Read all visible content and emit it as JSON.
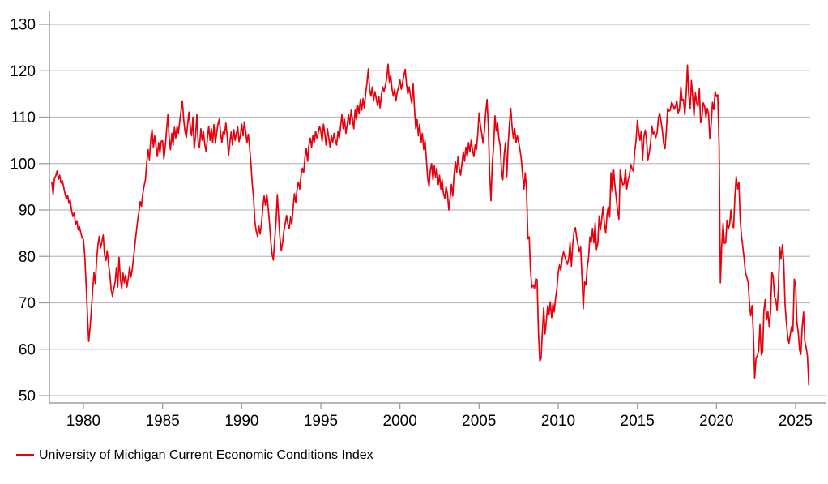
{
  "chart_data": {
    "type": "line",
    "title": "",
    "legend_position": "bottom-left",
    "grid": "horizontal",
    "x_ticks": [
      1980,
      1985,
      1990,
      1995,
      2000,
      2005,
      2010,
      2015,
      2020,
      2025
    ],
    "y_ticks": [
      50,
      60,
      70,
      80,
      90,
      100,
      110,
      120,
      130
    ],
    "x_range": [
      1977.92,
      2026.02
    ],
    "y_range": [
      48.4,
      132.8
    ],
    "colors": {
      "series": "#e8000d",
      "grid": "#bdbdbd",
      "axis": "#9e9e9e",
      "text": "#000000",
      "background": "#ffffff"
    },
    "series": [
      {
        "name": "University of Michigan Current Economic Conditions Index",
        "color": "#e8000d",
        "frequency": "monthly",
        "start_year": 1978,
        "start_month": 1,
        "end_year": 2025,
        "end_month": 11,
        "values": [
          96.0,
          93.4,
          96.9,
          97.3,
          98.4,
          96.6,
          97.5,
          95.8,
          96.3,
          94.9,
          93.6,
          92.4,
          93.2,
          91.4,
          92.1,
          89.8,
          88.6,
          89.4,
          86.9,
          87.7,
          85.7,
          86.4,
          85.1,
          84.0,
          83.6,
          80.2,
          74.0,
          67.5,
          61.7,
          64.5,
          68.5,
          72.8,
          76.5,
          74.2,
          79.3,
          82.5,
          84.3,
          81.8,
          83.2,
          84.6,
          80.4,
          79.1,
          81.2,
          78.4,
          76.1,
          72.9,
          71.4,
          73.0,
          74.5,
          77.6,
          73.4,
          79.8,
          75.2,
          73.1,
          76.4,
          74.3,
          76.0,
          73.4,
          75.3,
          77.8,
          75.5,
          77.2,
          79.8,
          82.5,
          85.0,
          87.5,
          89.5,
          91.8,
          90.8,
          93.5,
          95.2,
          96.5,
          100.2,
          103.0,
          100.8,
          105.2,
          107.3,
          103.5,
          106.0,
          103.8,
          101.5,
          104.5,
          102.3,
          104.8,
          104.9,
          101.0,
          103.5,
          107.0,
          110.5,
          105.5,
          103.0,
          106.5,
          104.0,
          107.8,
          105.5,
          108.0,
          106.5,
          109.0,
          111.5,
          113.5,
          109.5,
          107.0,
          105.6,
          108.5,
          111.1,
          108.0,
          106.0,
          110.0,
          103.2,
          106.0,
          110.5,
          104.5,
          103.5,
          107.5,
          105.0,
          107.0,
          104.0,
          102.6,
          105.5,
          108.0,
          105.0,
          107.5,
          104.5,
          108.4,
          104.4,
          106.5,
          108.5,
          109.6,
          106.5,
          104.5,
          107.0,
          106.4,
          108.7,
          106.0,
          101.8,
          104.5,
          106.8,
          104.0,
          107.3,
          105.0,
          106.5,
          107.9,
          104.7,
          106.0,
          108.5,
          106.0,
          109.0,
          107.0,
          104.5,
          106.3,
          103.5,
          100.0,
          95.5,
          92.5,
          87.5,
          85.5,
          84.3,
          86.5,
          84.8,
          87.0,
          90.5,
          93.0,
          91.0,
          93.4,
          90.7,
          87.5,
          83.5,
          80.5,
          79.2,
          83.5,
          87.5,
          93.3,
          88.5,
          84.0,
          81.2,
          83.0,
          85.5,
          87.0,
          88.8,
          87.0,
          86.0,
          88.5,
          87.0,
          90.5,
          93.5,
          91.5,
          94.5,
          96.0,
          94.5,
          97.5,
          99.0,
          98.0,
          101.5,
          103.2,
          100.5,
          104.0,
          105.5,
          103.5,
          106.0,
          104.5,
          107.0,
          105.5,
          106.5,
          108.0,
          107.0,
          104.8,
          108.5,
          106.5,
          104.0,
          107.5,
          105.5,
          103.5,
          106.0,
          104.5,
          106.5,
          105.0,
          104.0,
          107.0,
          105.5,
          108.0,
          110.5,
          107.5,
          109.5,
          106.5,
          108.5,
          110.5,
          108.5,
          111.5,
          109.5,
          107.5,
          111.5,
          109.5,
          112.5,
          110.8,
          113.8,
          111.5,
          114.0,
          112.0,
          115.0,
          117.5,
          120.4,
          116.0,
          114.5,
          116.5,
          113.5,
          115.5,
          114.0,
          112.5,
          114.5,
          112.0,
          115.0,
          116.5,
          115.5,
          117.0,
          118.5,
          121.4,
          117.5,
          119.0,
          116.0,
          114.5,
          116.0,
          113.5,
          115.5,
          116.5,
          118.0,
          116.0,
          117.5,
          119.0,
          120.3,
          117.0,
          115.0,
          116.5,
          114.5,
          113.0,
          117.3,
          112.0,
          107.5,
          109.5,
          106.0,
          108.5,
          104.5,
          106.5,
          103.0,
          105.0,
          101.0,
          97.0,
          95.0,
          98.5,
          100.0,
          96.5,
          99.5,
          97.0,
          99.0,
          95.5,
          97.5,
          94.5,
          96.5,
          93.5,
          92.5,
          95.0,
          93.5,
          90.0,
          92.5,
          95.5,
          93.0,
          97.5,
          100.5,
          98.0,
          101.5,
          99.0,
          97.5,
          100.0,
          102.5,
          100.5,
          103.5,
          101.5,
          104.5,
          102.5,
          105.0,
          103.0,
          101.5,
          104.0,
          103.0,
          106.5,
          110.9,
          108.2,
          106.5,
          104.4,
          107.0,
          111.0,
          113.8,
          108.2,
          98.1,
          92.0,
          100.0,
          103.5,
          110.3,
          107.0,
          108.8,
          105.5,
          103.8,
          98.5,
          96.5,
          102.0,
          104.5,
          97.2,
          104.0,
          108.5,
          111.9,
          108.0,
          105.5,
          107.5,
          104.5,
          106.0,
          104.5,
          103.0,
          101.0,
          97.6,
          94.5,
          98.0,
          94.4,
          83.8,
          84.2,
          77.0,
          73.3,
          73.9,
          73.1,
          75.2,
          75.0,
          63.7,
          57.5,
          58.0,
          64.0,
          68.9,
          63.3,
          66.0,
          69.4,
          67.5,
          70.2,
          66.8,
          69.8,
          68.0,
          71.0,
          73.0,
          76.5,
          78.2,
          77.0,
          79.5,
          81.0,
          80.0,
          79.0,
          78.3,
          79.6,
          82.9,
          77.9,
          82.5,
          85.3,
          86.2,
          84.0,
          82.6,
          81.0,
          82.0,
          75.8,
          68.7,
          74.5,
          73.8,
          77.6,
          79.6,
          84.2,
          83.0,
          86.0,
          82.9,
          87.2,
          81.5,
          82.7,
          88.7,
          85.7,
          88.1,
          90.7,
          87.0,
          85.0,
          89.0,
          90.7,
          88.5,
          98.0,
          93.8,
          98.6,
          95.2,
          92.6,
          89.9,
          88.0,
          98.6,
          96.8,
          95.4,
          95.7,
          98.7,
          94.5,
          96.6,
          97.4,
          99.8,
          98.9,
          98.3,
          102.7,
          104.8,
          109.3,
          106.9,
          105.0,
          107.0,
          100.8,
          105.9,
          107.2,
          105.1,
          100.8,
          102.3,
          104.3,
          108.1,
          106.4,
          106.8,
          105.6,
          106.7,
          109.9,
          110.8,
          109.0,
          107.0,
          104.2,
          103.2,
          107.3,
          111.9,
          111.3,
          111.5,
          113.2,
          112.7,
          111.7,
          112.5,
          113.4,
          110.9,
          111.7,
          116.5,
          113.5,
          113.8,
          110.5,
          114.9,
          121.2,
          114.9,
          111.8,
          117.9,
          114.4,
          110.3,
          115.2,
          113.1,
          112.3,
          116.1,
          108.8,
          110.0,
          113.1,
          112.3,
          110.0,
          111.9,
          110.7,
          105.3,
          108.5,
          113.2,
          111.6,
          115.5,
          114.4,
          114.8,
          103.7,
          74.3,
          82.3,
          87.1,
          82.8,
          82.9,
          87.8,
          85.9,
          87.0,
          90.0,
          86.7,
          86.2,
          93.0,
          97.2,
          94.5,
          96.0,
          88.0,
          84.5,
          82.0,
          79.5,
          76.5,
          75.5,
          74.5,
          70.0,
          67.2,
          69.4,
          63.3,
          53.8,
          58.1,
          58.6,
          59.7,
          65.3,
          58.8,
          59.4,
          68.4,
          70.7,
          66.3,
          68.2,
          64.9,
          68.0,
          76.6,
          75.7,
          71.4,
          70.6,
          68.3,
          73.3,
          81.9,
          79.4,
          82.5,
          79.0,
          69.6,
          65.9,
          62.7,
          61.3,
          63.3,
          64.9,
          63.9,
          75.1,
          74.0,
          65.7,
          63.8,
          59.8,
          58.9,
          64.8,
          68.0,
          61.7,
          60.4,
          58.6,
          52.3
        ]
      }
    ]
  }
}
